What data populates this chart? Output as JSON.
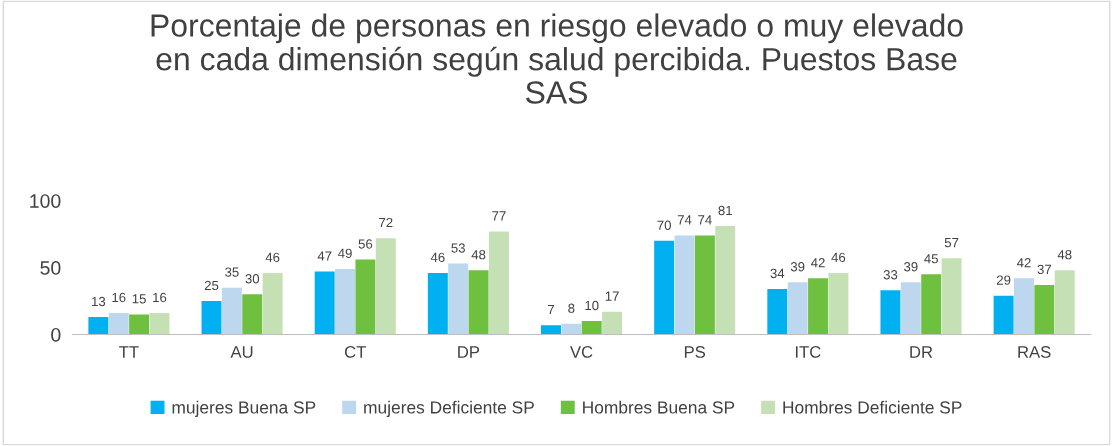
{
  "chart_data": {
    "type": "bar",
    "title": "Porcentaje de personas en riesgo elevado o muy elevado\nen cada dimensión según salud percibida. Puestos Base\nSAS",
    "categories": [
      "TT",
      "AU",
      "CT",
      "DP",
      "VC",
      "PS",
      "ITC",
      "DR",
      "RAS"
    ],
    "series": [
      {
        "name": "mujeres Buena SP",
        "color": "#00b0f0",
        "values": [
          13,
          25,
          47,
          46,
          7,
          70,
          34,
          33,
          29
        ]
      },
      {
        "name": "mujeres Deficiente SP",
        "color": "#bdd7ee",
        "values": [
          16,
          35,
          49,
          53,
          8,
          74,
          39,
          39,
          42
        ]
      },
      {
        "name": "Hombres Buena SP",
        "color": "#70c040",
        "values": [
          15,
          30,
          56,
          48,
          10,
          74,
          42,
          45,
          37
        ]
      },
      {
        "name": "Hombres Deficiente SP",
        "color": "#c5e0b4",
        "values": [
          16,
          46,
          72,
          77,
          17,
          81,
          46,
          57,
          48
        ]
      }
    ],
    "ylim": [
      0,
      100
    ],
    "yticks": [
      0,
      50,
      100
    ],
    "grid": false,
    "legend": "bottom",
    "data_labels": true
  }
}
